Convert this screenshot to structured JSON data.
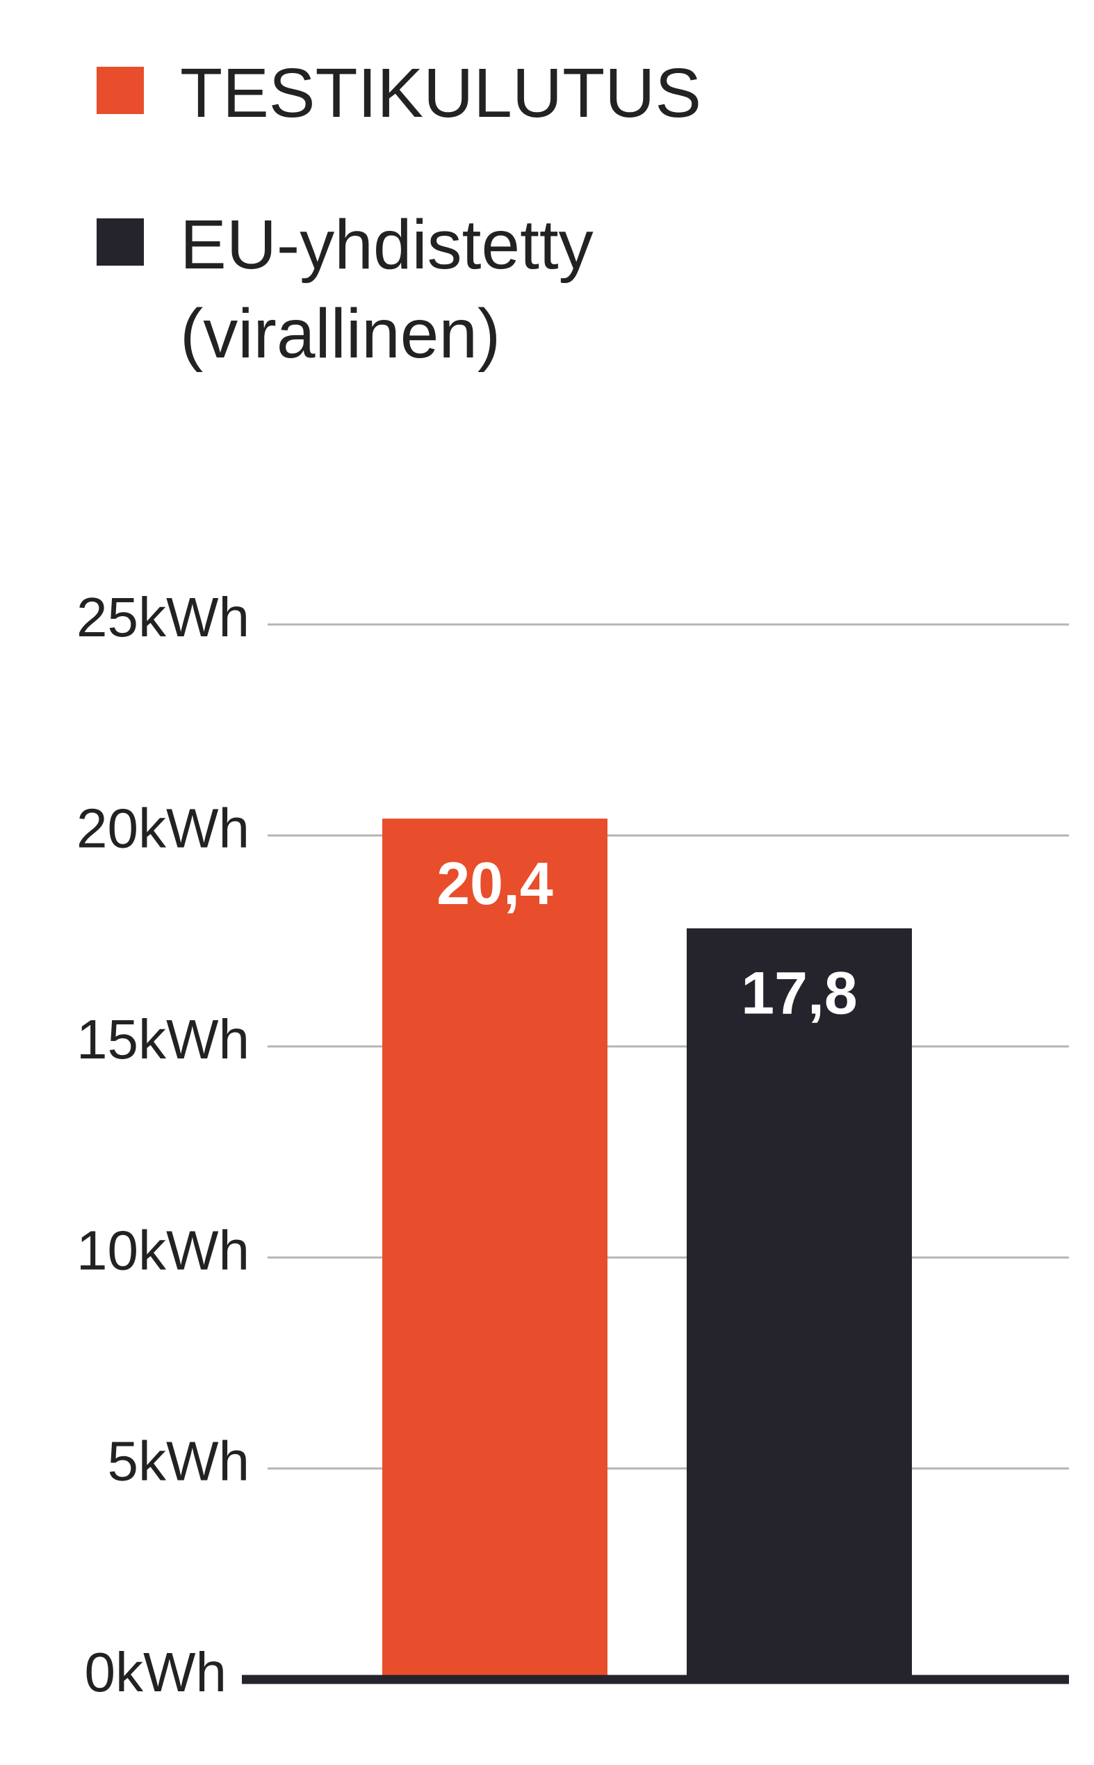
{
  "chart_data": {
    "type": "bar",
    "series": [
      {
        "name": "TESTIKULUTUS",
        "color": "#e84e2b",
        "values": [
          20.4
        ],
        "value_labels": [
          "20,4"
        ]
      },
      {
        "name": "EU-yhdistetty (virallinen)",
        "color": "#25232b",
        "values": [
          17.8
        ],
        "value_labels": [
          "17,8"
        ]
      }
    ],
    "ylim": [
      0,
      25
    ],
    "yticks": [
      {
        "value": 0,
        "label": "0kWh"
      },
      {
        "value": 5,
        "label": "5kWh"
      },
      {
        "value": 10,
        "label": "10kWh"
      },
      {
        "value": 15,
        "label": "15kWh"
      },
      {
        "value": 20,
        "label": "20kWh"
      },
      {
        "value": 25,
        "label": "25kWh"
      }
    ],
    "grid": true
  }
}
